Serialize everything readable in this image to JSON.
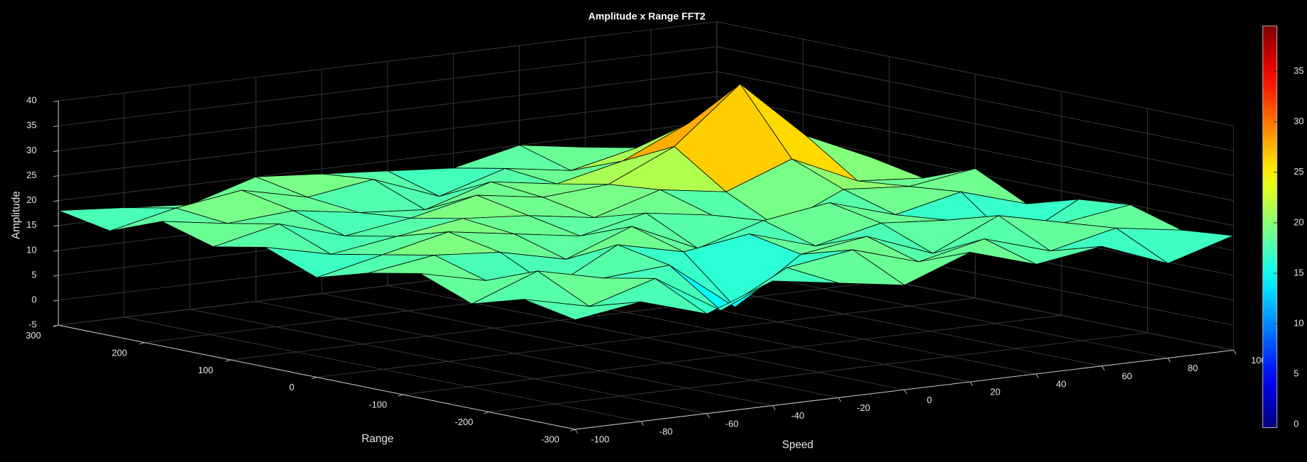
{
  "chart_data": {
    "type": "surface",
    "title": "Amplitude x Range FFT2",
    "xlabel": "Speed",
    "ylabel": "Range",
    "zlabel": "Amplitude",
    "x": [
      -100,
      -80,
      -60,
      -40,
      -20,
      0,
      20,
      40,
      60,
      80,
      100
    ],
    "y": [
      -300,
      -240,
      -180,
      -120,
      -60,
      0,
      60,
      120,
      180,
      240,
      300
    ],
    "z": [
      [
        17,
        19,
        15,
        20,
        18,
        16,
        21,
        17,
        19,
        14,
        18
      ],
      [
        19,
        16,
        20,
        12,
        19,
        21,
        17,
        20,
        16,
        19,
        17
      ],
      [
        16,
        21,
        18,
        19,
        9,
        18,
        20,
        15,
        21,
        18,
        20
      ],
      [
        20,
        17,
        14,
        21,
        18,
        20,
        16,
        19,
        18,
        12,
        19
      ],
      [
        18,
        20,
        19,
        16,
        21,
        15,
        19,
        21,
        17,
        20,
        16
      ],
      [
        15,
        18,
        21,
        19,
        17,
        20,
        18,
        14,
        20,
        19,
        21
      ],
      [
        19,
        16,
        18,
        20,
        19,
        17,
        21,
        19,
        24,
        18,
        17
      ],
      [
        17,
        20,
        16,
        18,
        21,
        19,
        20,
        26,
        37,
        25,
        19
      ],
      [
        20,
        18,
        19,
        17,
        16,
        20,
        18,
        21,
        27,
        20,
        18
      ],
      [
        16,
        19,
        21,
        18,
        20,
        15,
        19,
        17,
        20,
        19,
        16
      ],
      [
        18,
        17,
        16,
        20,
        19,
        18,
        17,
        20,
        18,
        16,
        19
      ]
    ],
    "xlim": [
      -100,
      100
    ],
    "ylim": [
      -300,
      300
    ],
    "zlim": [
      -5,
      40
    ],
    "xticks": [
      -100,
      -80,
      -60,
      -40,
      -20,
      0,
      20,
      40,
      60,
      80,
      100
    ],
    "yticks": [
      -300,
      -200,
      -100,
      0,
      100,
      200,
      300
    ],
    "zticks": [
      -5,
      0,
      5,
      10,
      15,
      20,
      25,
      30,
      35,
      40
    ],
    "colormap": "jet",
    "clim": [
      -0.3,
      39.5
    ],
    "cticks": [
      0,
      5,
      10,
      15,
      20,
      25,
      30,
      35
    ],
    "grid": true,
    "edgecolor": "#000000"
  }
}
